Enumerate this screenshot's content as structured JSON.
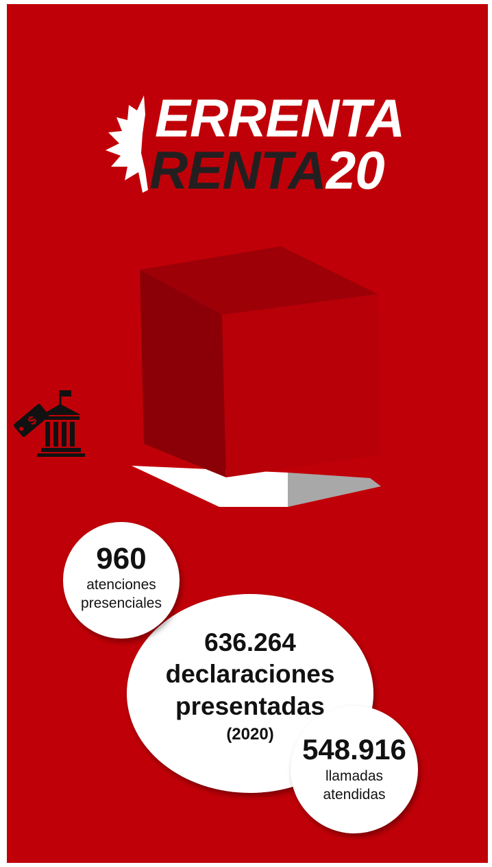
{
  "logo": {
    "line1": "ERRENTA",
    "line2_dark": "RENTA",
    "line2_light": "20"
  },
  "stats": {
    "visits": {
      "number": "960",
      "label_line1": "atenciones",
      "label_line2": "presenciales"
    },
    "declarations": {
      "number": "636.264",
      "label_line1": "declaraciones",
      "label_line2": "presentadas",
      "year": "(2020)"
    },
    "calls": {
      "number": "548.916",
      "label_line1": "llamadas",
      "label_line2": "atendidas"
    }
  },
  "icons": [
    "leaf-icon",
    "bank-tax-tag-icon",
    "ballot-box-icon"
  ],
  "colors": {
    "background": "#c00008",
    "circle": "#ffffff",
    "text_dark": "#111111",
    "logo_dark": "#231f20"
  }
}
